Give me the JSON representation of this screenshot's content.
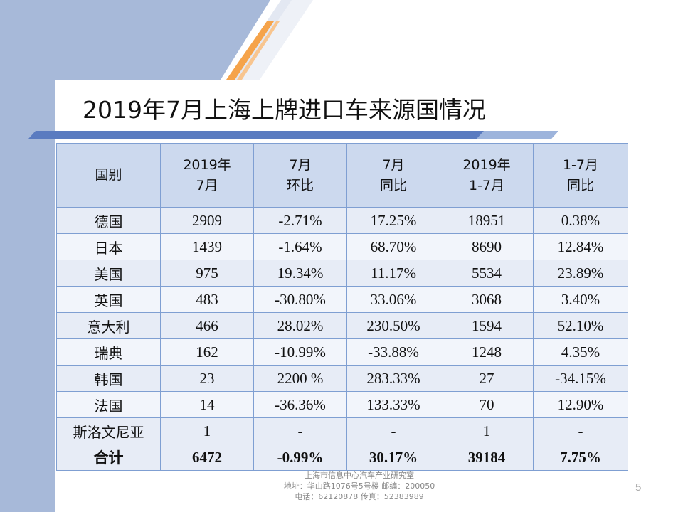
{
  "title": "2019年7月上海上牌进口车来源国情况",
  "colors": {
    "accent_blue": "#a7b9d9",
    "accent_orange": "#f5a34a",
    "header_fill": "#ccd9ee",
    "border": "#7f9fd2"
  },
  "table": {
    "headers": [
      [
        "国别"
      ],
      [
        "2019年",
        "7月"
      ],
      [
        "7月",
        "环比"
      ],
      [
        "7月",
        "同比"
      ],
      [
        "2019年",
        "1-7月"
      ],
      [
        "1-7月",
        "同比"
      ]
    ],
    "rows": [
      [
        "德国",
        "2909",
        "-2.71%",
        "17.25%",
        "18951",
        "0.38%"
      ],
      [
        "日本",
        "1439",
        "-1.64%",
        "68.70%",
        "8690",
        "12.84%"
      ],
      [
        "美国",
        "975",
        "19.34%",
        "11.17%",
        "5534",
        "23.89%"
      ],
      [
        "英国",
        "483",
        "-30.80%",
        "33.06%",
        "3068",
        "3.40%"
      ],
      [
        "意大利",
        "466",
        "28.02%",
        "230.50%",
        "1594",
        "52.10%"
      ],
      [
        "瑞典",
        "162",
        "-10.99%",
        "-33.88%",
        "1248",
        "4.35%"
      ],
      [
        "韩国",
        "23",
        "2200 %",
        "283.33%",
        "27",
        "-34.15%"
      ],
      [
        "法国",
        "14",
        "-36.36%",
        "133.33%",
        "70",
        "12.90%"
      ],
      [
        "斯洛文尼亚",
        "1",
        "-",
        "-",
        "1",
        "-"
      ]
    ],
    "total": [
      "合计",
      "6472",
      "-0.99%",
      "30.17%",
      "39184",
      "7.75%"
    ]
  },
  "footer": {
    "line1": "上海市信息中心汽车产业研究室",
    "line2": "地址：华山路1076号5号楼   邮编：200050",
    "line3": "电话：62120878  传真：52383989"
  },
  "page_number": "5"
}
